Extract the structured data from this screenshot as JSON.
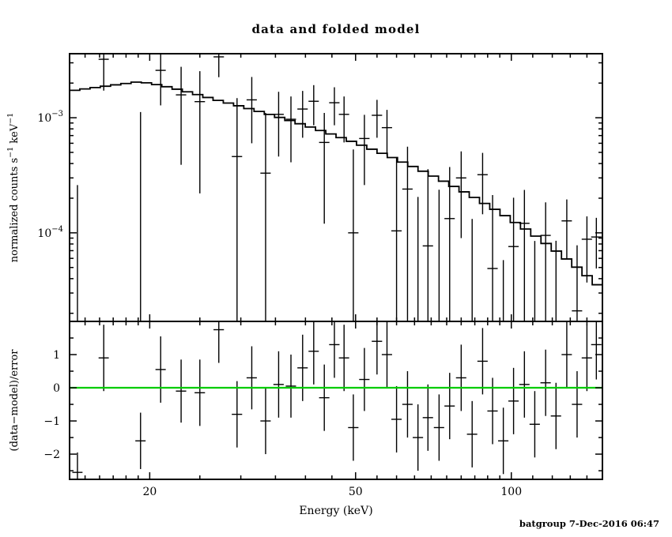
{
  "title": "data and folded model",
  "footer": "batgroup  7-Dec-2016 06:47",
  "colors": {
    "foreground": "#000000",
    "zero_line": "#00cc00",
    "background": "#ffffff"
  },
  "chart_data": [
    {
      "name": "spectrum",
      "type": "scatter",
      "title": "data and folded model",
      "ylabel": "normalized counts s⁻¹ keV⁻¹",
      "ylabel_parts": [
        {
          "t": "normalized counts s"
        },
        {
          "t": "−1",
          "sup": true
        },
        {
          "t": " keV"
        },
        {
          "t": "−1",
          "sup": true
        }
      ],
      "xscale": "log",
      "yscale": "log",
      "xlim": [
        14,
        150
      ],
      "ylim": [
        1.7e-05,
        0.0036
      ],
      "x_major_ticks": [
        20,
        50,
        100
      ],
      "x_minor_ticks": [
        15,
        16,
        17,
        18,
        19,
        25,
        30,
        35,
        40,
        45,
        55,
        60,
        65,
        70,
        75,
        80,
        85,
        90,
        95,
        110,
        120,
        130,
        140,
        150
      ],
      "y_major_ticks": [
        {
          "value": 0.001,
          "label_base": "10",
          "label_exp": "−3"
        },
        {
          "value": 0.0001,
          "label_base": "10",
          "label_exp": "−4"
        }
      ],
      "y_minor_ticks": [
        2e-05,
        3e-05,
        4e-05,
        5e-05,
        6e-05,
        7e-05,
        8e-05,
        9e-05,
        0.0002,
        0.0003,
        0.0004,
        0.0005,
        0.0006,
        0.0007,
        0.0008,
        0.0009,
        0.002,
        0.003
      ],
      "model": {
        "bin_edges": [
          14.0,
          14.653,
          15.337,
          16.053,
          16.802,
          17.586,
          18.407,
          19.266,
          20.165,
          21.106,
          22.091,
          23.122,
          24.201,
          25.33,
          26.512,
          27.75,
          29.045,
          30.4,
          31.819,
          33.304,
          34.858,
          36.485,
          38.187,
          39.969,
          41.834,
          43.787,
          45.83,
          47.969,
          50.207,
          52.55,
          55.003,
          57.569,
          60.256,
          63.068,
          66.011,
          69.091,
          72.315,
          75.69,
          79.222,
          82.919,
          86.788,
          90.838,
          95.077,
          99.514,
          104.158,
          109.019,
          114.106,
          119.431,
          125.005,
          130.838,
          136.943,
          143.334,
          150.0
        ],
        "values": [
          0.00173,
          0.001778,
          0.001828,
          0.001878,
          0.00193,
          0.001984,
          0.002039,
          0.00201,
          0.00194,
          0.00186,
          0.00177,
          0.00168,
          0.00159,
          0.0015,
          0.001414,
          0.001341,
          0.00127,
          0.001201,
          0.001134,
          0.001069,
          0.001006,
          0.000946,
          0.000887,
          0.00083,
          0.000775,
          0.000723,
          0.000672,
          0.000624,
          0.000577,
          0.000533,
          0.000491,
          0.000451,
          0.000412,
          0.000377,
          0.000343,
          0.000311,
          0.000281,
          0.000253,
          0.000227,
          0.000203,
          0.00018,
          0.00016,
          0.000141,
          0.000123,
          0.000108,
          9.36e-05,
          8.08e-05,
          6.94e-05,
          5.93e-05,
          5.03e-05,
          4.24e-05,
          3.54e-05
        ]
      },
      "point_format": [
        "energy_keV",
        "energy_halfwidth_keV",
        "value",
        "error"
      ],
      "points": [
        [
          14.5,
          0.33,
          -0.0007,
          0.00096
        ],
        [
          16.3,
          0.37,
          0.00322,
          0.0015
        ],
        [
          19.2,
          0.44,
          -0.0004,
          0.00152
        ],
        [
          21.0,
          0.48,
          0.00258,
          0.0013
        ],
        [
          23.0,
          0.53,
          0.00158,
          0.00119
        ],
        [
          25.0,
          0.58,
          0.00138,
          0.00116
        ],
        [
          27.2,
          0.63,
          0.00338,
          0.00113
        ],
        [
          29.5,
          0.68,
          0.00046,
          0.00102
        ],
        [
          31.5,
          0.72,
          0.00143,
          0.00083
        ],
        [
          33.5,
          0.77,
          0.00033,
          0.00077
        ],
        [
          35.5,
          0.82,
          0.00107,
          0.00061
        ],
        [
          37.5,
          0.86,
          0.00097,
          0.00056
        ],
        [
          39.5,
          0.91,
          0.00119,
          0.00052
        ],
        [
          41.5,
          0.95,
          0.00139,
          0.00053
        ],
        [
          43.5,
          1.0,
          0.00061,
          0.00049
        ],
        [
          45.5,
          1.05,
          0.00135,
          0.00049
        ],
        [
          47.5,
          1.09,
          0.00107,
          0.00046
        ],
        [
          49.5,
          1.14,
          0.0001,
          0.00043
        ],
        [
          52.0,
          1.2,
          0.00066,
          0.0004
        ],
        [
          55.0,
          1.27,
          0.00105,
          0.00038
        ],
        [
          57.5,
          1.32,
          0.00082,
          0.00035
        ],
        [
          60.0,
          1.38,
          0.000104,
          0.00035
        ],
        [
          63.0,
          1.45,
          0.00024,
          0.00032
        ],
        [
          66.0,
          1.52,
          -0.0001,
          0.000305
        ],
        [
          69.0,
          1.59,
          7.7e-05,
          0.00028
        ],
        [
          72.5,
          1.67,
          -2.3e-05,
          0.00026
        ],
        [
          76.0,
          1.75,
          0.000133,
          0.00024
        ],
        [
          80.0,
          1.84,
          0.0003,
          0.00021
        ],
        [
          84.0,
          1.93,
          -6.8e-05,
          0.0002
        ],
        [
          88.0,
          2.02,
          0.00032,
          0.000175
        ],
        [
          92.0,
          2.12,
          4.9e-05,
          0.000164
        ],
        [
          96.5,
          2.22,
          -8.6e-05,
          0.000144
        ],
        [
          101.0,
          2.32,
          7.6e-05,
          0.000126
        ],
        [
          106.0,
          2.44,
          0.000121,
          0.000115
        ],
        [
          111.0,
          2.55,
          -1.5e-05,
          0.0001
        ],
        [
          116.5,
          2.68,
          9.5e-05,
          8.9e-05
        ],
        [
          122.0,
          2.81,
          8.4e-06,
          7.7e-05
        ],
        [
          128.0,
          2.94,
          0.000127,
          6.8e-05
        ],
        [
          134.0,
          3.08,
          2.1e-05,
          5.7e-05
        ],
        [
          140.0,
          3.22,
          8.8e-05,
          5.1e-05
        ],
        [
          146.0,
          3.36,
          9.2e-05,
          4.3e-05
        ]
      ]
    },
    {
      "name": "residuals",
      "type": "scatter",
      "xlabel": "Energy (keV)",
      "ylabel": "(data−model)/error",
      "ylabel_parts": [
        {
          "t": "(data−model)/error"
        }
      ],
      "xscale": "log",
      "yscale": "linear",
      "xlim": [
        14,
        150
      ],
      "ylim": [
        -2.76,
        2.0
      ],
      "y_major_ticks": [
        1,
        0,
        -1,
        -2
      ],
      "y_minor_ticks": [
        1.5,
        0.5,
        -0.5,
        -1.5,
        -2.5
      ],
      "zero_line": 0,
      "point_format": [
        "energy_keV",
        "energy_halfwidth_keV",
        "sigma",
        "sigma_error"
      ],
      "points": [
        [
          14.5,
          0.33,
          -2.55,
          0.6
        ],
        [
          16.3,
          0.37,
          0.9,
          1.0
        ],
        [
          19.2,
          0.44,
          -1.6,
          0.85
        ],
        [
          21.0,
          0.48,
          0.55,
          1.0
        ],
        [
          23.0,
          0.53,
          -0.1,
          0.95
        ],
        [
          25.0,
          0.58,
          -0.15,
          1.0
        ],
        [
          27.2,
          0.63,
          1.75,
          1.0
        ],
        [
          29.5,
          0.68,
          -0.8,
          1.0
        ],
        [
          31.5,
          0.72,
          0.3,
          0.95
        ],
        [
          33.5,
          0.77,
          -1.0,
          1.0
        ],
        [
          35.5,
          0.82,
          0.1,
          1.0
        ],
        [
          37.5,
          0.86,
          0.05,
          0.95
        ],
        [
          39.5,
          0.91,
          0.6,
          1.0
        ],
        [
          41.5,
          0.95,
          1.1,
          1.0
        ],
        [
          43.5,
          1.0,
          -0.3,
          1.0
        ],
        [
          45.5,
          1.05,
          1.3,
          1.0
        ],
        [
          47.5,
          1.09,
          0.9,
          1.0
        ],
        [
          49.5,
          1.14,
          -1.2,
          1.0
        ],
        [
          52.0,
          1.2,
          0.25,
          0.95
        ],
        [
          55.0,
          1.27,
          1.4,
          1.0
        ],
        [
          57.5,
          1.32,
          1.0,
          1.0
        ],
        [
          60.0,
          1.38,
          -0.95,
          1.0
        ],
        [
          63.0,
          1.45,
          -0.5,
          1.0
        ],
        [
          66.0,
          1.52,
          -1.5,
          1.0
        ],
        [
          69.0,
          1.59,
          -0.9,
          1.0
        ],
        [
          72.5,
          1.67,
          -1.2,
          1.0
        ],
        [
          76.0,
          1.75,
          -0.55,
          1.0
        ],
        [
          80.0,
          1.84,
          0.3,
          1.0
        ],
        [
          84.0,
          1.93,
          -1.4,
          1.0
        ],
        [
          88.0,
          2.02,
          0.8,
          1.0
        ],
        [
          92.0,
          2.12,
          -0.7,
          1.0
        ],
        [
          96.5,
          2.22,
          -1.6,
          1.0
        ],
        [
          101.0,
          2.32,
          -0.4,
          1.0
        ],
        [
          106.0,
          2.44,
          0.1,
          1.0
        ],
        [
          111.0,
          2.55,
          -1.1,
          1.0
        ],
        [
          116.5,
          2.68,
          0.15,
          1.0
        ],
        [
          122.0,
          2.81,
          -0.85,
          1.0
        ],
        [
          128.0,
          2.94,
          1.0,
          1.0
        ],
        [
          134.0,
          3.08,
          -0.5,
          1.0
        ],
        [
          140.0,
          3.22,
          0.9,
          1.0
        ],
        [
          146.0,
          3.36,
          1.3,
          1.05
        ]
      ]
    }
  ]
}
